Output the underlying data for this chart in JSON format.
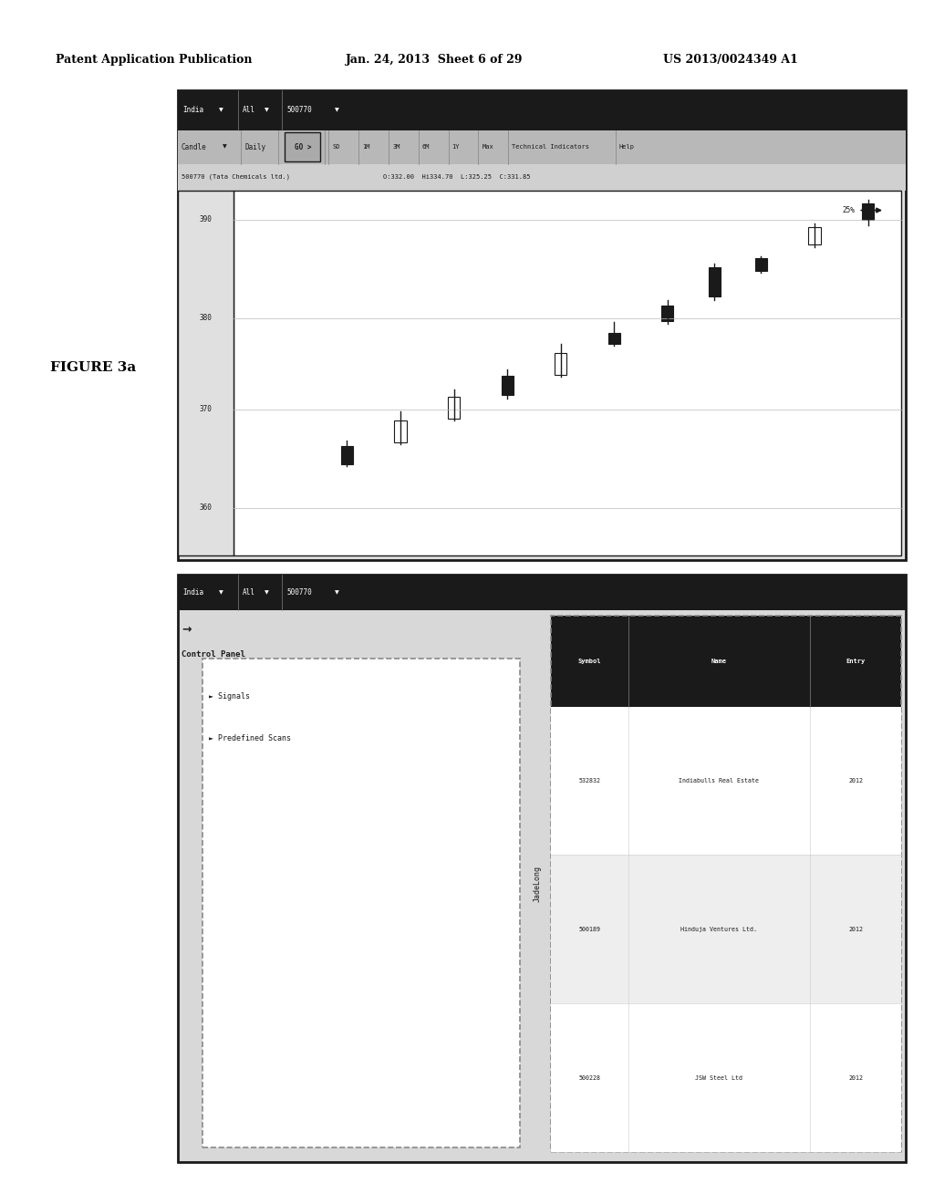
{
  "title_left": "Patent Application Publication",
  "title_mid": "Jan. 24, 2013  Sheet 6 of 29",
  "title_right": "US 2013/0024349 A1",
  "figure_label": "FIGURE 3a",
  "bg_color": "#ffffff",
  "dark_color": "#1a1a1a",
  "gray_color": "#888888",
  "light_gray": "#cccccc",
  "chart_labels": {
    "symbol": "500770 (Tata Chemicals ltd.)",
    "ohlc": "O:332.00  Hi334.70  L:325.25  C:331.85",
    "tech_ind": "Technical Indicators",
    "help": "Help"
  },
  "price_levels": [
    390,
    380,
    370,
    360
  ],
  "candle_data": [
    [
      0.95,
      0.905,
      0.975,
      0.92,
      0.965,
      true
    ],
    [
      0.87,
      0.845,
      0.91,
      0.852,
      0.898,
      false
    ],
    [
      0.79,
      0.775,
      0.82,
      0.778,
      0.815,
      true
    ],
    [
      0.72,
      0.7,
      0.8,
      0.71,
      0.79,
      true
    ],
    [
      0.65,
      0.635,
      0.7,
      0.642,
      0.685,
      true
    ],
    [
      0.57,
      0.575,
      0.64,
      0.578,
      0.61,
      true
    ],
    [
      0.49,
      0.49,
      0.58,
      0.495,
      0.555,
      false
    ],
    [
      0.41,
      0.43,
      0.51,
      0.438,
      0.492,
      true
    ],
    [
      0.33,
      0.37,
      0.455,
      0.375,
      0.435,
      false
    ],
    [
      0.25,
      0.305,
      0.395,
      0.31,
      0.368,
      false
    ],
    [
      0.17,
      0.245,
      0.315,
      0.25,
      0.3,
      true
    ]
  ],
  "arrow_label": "25%",
  "bottom_panel": {
    "control_panel": "Control Panel",
    "signals": "Signals",
    "predefined": "Predefined Scans",
    "jadelong": "JadeLong",
    "table_headers": [
      "Symbol",
      "Name",
      "Entry"
    ],
    "table_rows": [
      [
        "532832",
        "Indiabulls Real Estate",
        "2012"
      ],
      [
        "500189",
        "Hinduja Ventures Ltd.",
        "2012"
      ],
      [
        "500228",
        "JSW Steel Ltd",
        "2012"
      ]
    ]
  }
}
